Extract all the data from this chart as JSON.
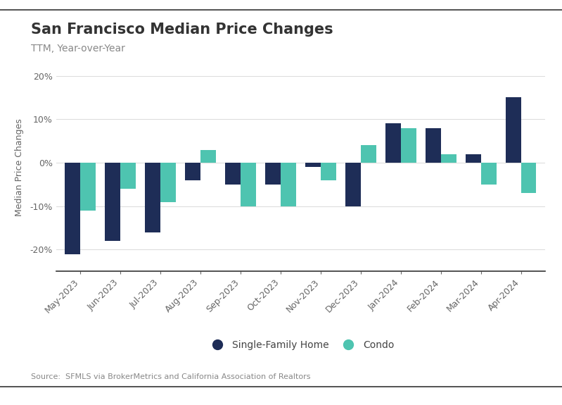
{
  "categories": [
    "May-2023",
    "Jun-2023",
    "Jul-2023",
    "Aug-2023",
    "Sep-2023",
    "Oct-2023",
    "Nov-2023",
    "Dec-2023",
    "Jan-2024",
    "Feb-2024",
    "Mar-2024",
    "Apr-2024"
  ],
  "sfh_values": [
    -21,
    -18,
    -16,
    -4,
    -5,
    -5,
    -1,
    -10,
    9,
    8,
    2,
    15
  ],
  "condo_values": [
    -11,
    -6,
    -9,
    3,
    -10,
    -10,
    -4,
    4,
    8,
    2,
    -5,
    -7
  ],
  "sfh_color": "#1e2d57",
  "condo_color": "#4ec4b0",
  "title": "San Francisco Median Price Changes",
  "subtitle": "TTM, Year-over-Year",
  "ylabel": "Median Price Changes",
  "source": "Source:  SFMLS via BrokerMetrics and California Association of Realtors",
  "legend_sfh": "Single-Family Home",
  "legend_condo": "Condo",
  "ylim": [
    -25,
    23
  ],
  "yticks": [
    -20,
    -10,
    0,
    10,
    20
  ],
  "background_color": "#ffffff",
  "bar_width": 0.38,
  "title_fontsize": 15,
  "subtitle_fontsize": 10,
  "ylabel_fontsize": 9,
  "tick_fontsize": 9,
  "source_fontsize": 8,
  "legend_fontsize": 10
}
